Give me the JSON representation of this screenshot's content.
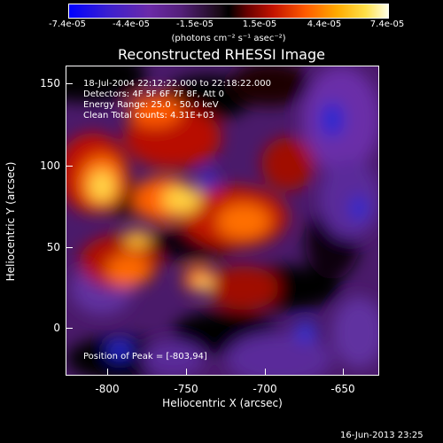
{
  "colorbar": {
    "ticks": [
      "-7.4e-05",
      "-4.4e-05",
      "-1.5e-05",
      "1.5e-05",
      "4.4e-05",
      "7.4e-05"
    ],
    "units": "(photons cm⁻² s⁻¹ asec⁻²)"
  },
  "title": "Reconstructed RHESSI Image",
  "annotations": {
    "time": "18-Jul-2004 22:12:22.000 to 22:18:22.000",
    "detectors": "Detectors: 4F 5F 6F 7F 8F, Att 0",
    "energy": "Energy Range: 25.0 - 50.0 keV",
    "clean": "Clean     Total counts: 4.31E+03",
    "peak": "Position of Peak = [-803,94]"
  },
  "axes": {
    "xlabel": "Heliocentric X (arcsec)",
    "ylabel": "Heliocentric Y (arcsec)",
    "xticks": [
      "-800",
      "-750",
      "-700",
      "-650"
    ],
    "yticks": [
      "150",
      "100",
      "50",
      "0"
    ]
  },
  "timestamp": "16-Jun-2013 23:25",
  "colors": {
    "background": "#000000",
    "foreground": "#ffffff"
  }
}
